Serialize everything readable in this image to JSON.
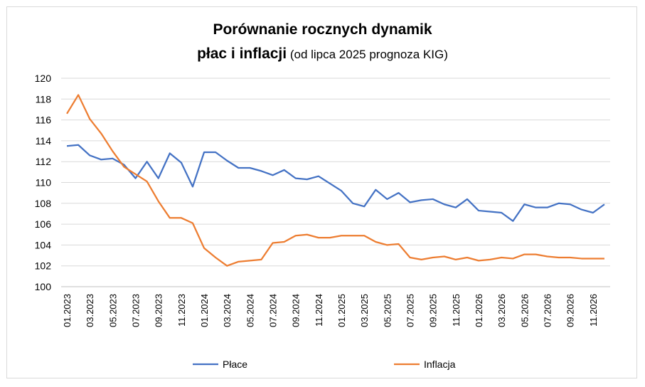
{
  "chart_data": {
    "type": "line",
    "title_line1": "Porównanie rocznych dynamik",
    "title_line2_bold": "płac i inflacji",
    "title_line2_rest": " (od lipca 2025 prognoza KIG)",
    "ylim": [
      100,
      120
    ],
    "yticks": [
      100,
      102,
      104,
      106,
      108,
      110,
      112,
      114,
      116,
      118,
      120
    ],
    "grid": true,
    "legend": "bottom",
    "x_labels": [
      "01.2023",
      "03.2023",
      "05.2023",
      "07.2023",
      "09.2023",
      "11.2023",
      "01.2024",
      "03.2024",
      "05.2024",
      "07.2024",
      "09.2024",
      "11.2024",
      "01.2025",
      "03.2025",
      "05.2025",
      "07.2025",
      "09.2025",
      "11.2025",
      "01.2026",
      "03.2026",
      "05.2026",
      "07.2026",
      "09.2026",
      "11.2026"
    ],
    "series": [
      {
        "name": "Płace",
        "color": "#4472c4",
        "values": [
          113.5,
          113.6,
          112.6,
          112.2,
          112.3,
          111.7,
          110.4,
          112.0,
          110.4,
          112.8,
          111.9,
          109.6,
          112.9,
          112.9,
          112.1,
          111.4,
          111.4,
          111.1,
          110.7,
          111.2,
          110.4,
          110.3,
          110.6,
          109.9,
          109.2,
          108.0,
          107.7,
          109.3,
          108.4,
          109.0,
          108.1,
          108.3,
          108.4,
          107.9,
          107.6,
          108.4,
          107.3,
          107.2,
          107.1,
          106.3,
          107.9,
          107.6,
          107.6,
          108.0,
          107.9,
          107.4,
          107.1,
          107.9
        ]
      },
      {
        "name": "Inflacja",
        "color": "#ed7d31",
        "values": [
          116.6,
          118.4,
          116.1,
          114.7,
          113.0,
          111.5,
          110.8,
          110.1,
          108.2,
          106.6,
          106.6,
          106.1,
          103.7,
          102.8,
          102.0,
          102.4,
          102.5,
          102.6,
          104.2,
          104.3,
          104.9,
          105.0,
          104.7,
          104.7,
          104.9,
          104.9,
          104.9,
          104.3,
          104.0,
          104.1,
          102.8,
          102.6,
          102.8,
          102.9,
          102.6,
          102.8,
          102.5,
          102.6,
          102.8,
          102.7,
          103.1,
          103.1,
          102.9,
          102.8,
          102.8,
          102.7,
          102.7,
          102.7
        ]
      }
    ]
  }
}
